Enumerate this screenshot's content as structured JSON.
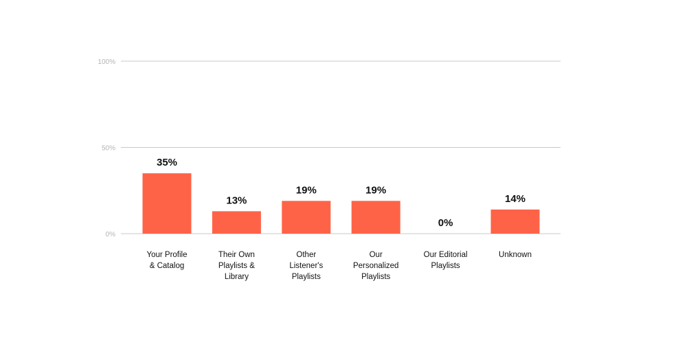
{
  "chart_data": {
    "type": "bar",
    "categories": [
      [
        "Your Profile",
        "& Catalog"
      ],
      [
        "Their Own",
        "Playlists &",
        "Library"
      ],
      [
        "Other",
        "Listener's",
        "Playlists"
      ],
      [
        "Our",
        "Personalized",
        "Playlists"
      ],
      [
        "Our Editorial",
        "Playlists"
      ],
      [
        "Unknown"
      ]
    ],
    "values": [
      35,
      13,
      19,
      19,
      0,
      14
    ],
    "data_labels": [
      "35%",
      "13%",
      "19%",
      "19%",
      "0%",
      "14%"
    ],
    "yticks": [
      {
        "value": 0,
        "label": "0%"
      },
      {
        "value": 50,
        "label": "50%"
      },
      {
        "value": 100,
        "label": "100%"
      }
    ],
    "ylim": [
      0,
      100
    ],
    "grid": true,
    "bar_color": "#ff6347"
  }
}
